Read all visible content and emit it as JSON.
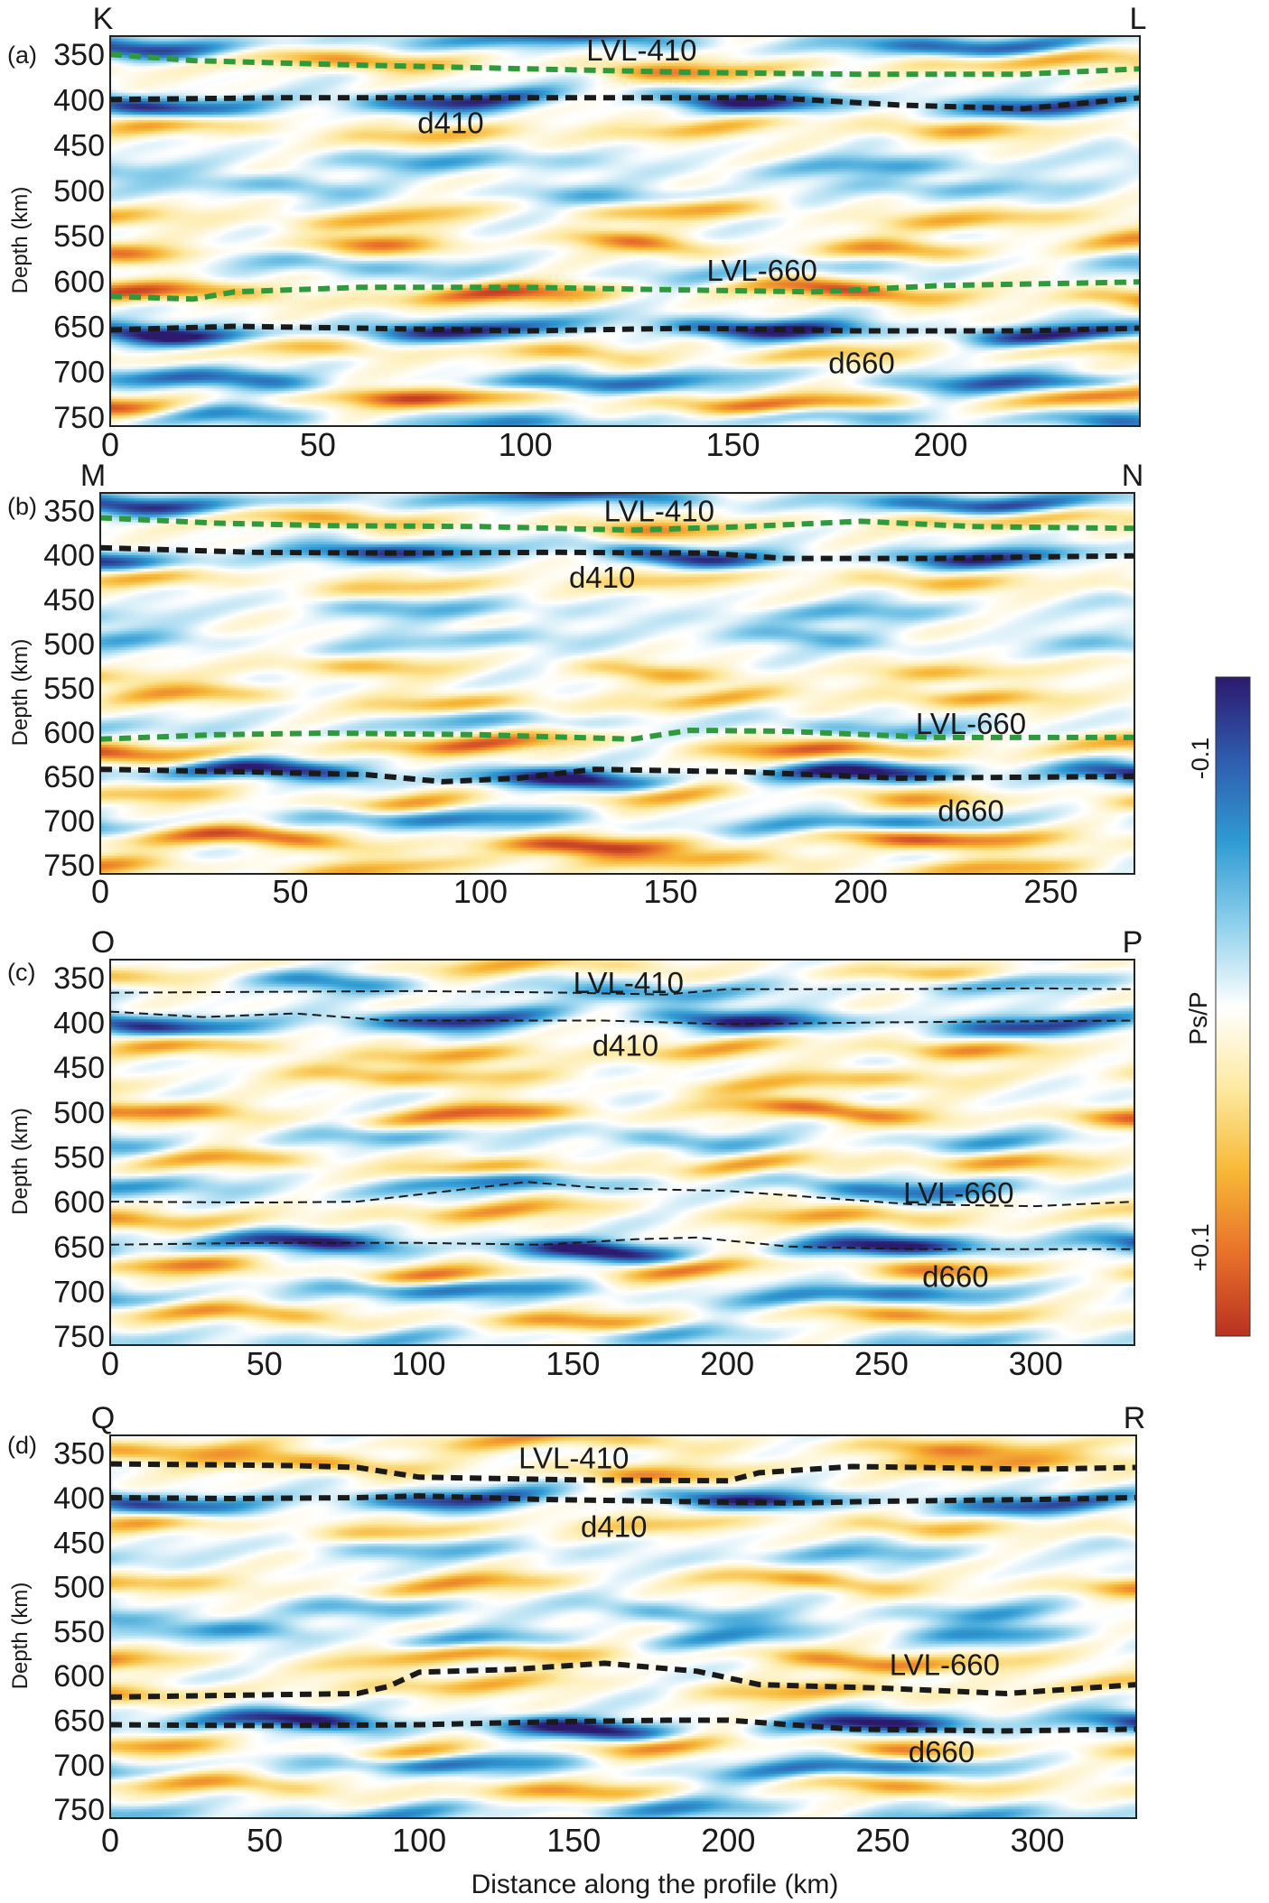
{
  "chart_data": {
    "type": "heatmap",
    "colorbar": {
      "label": "Ps/P",
      "ticks": [
        "-0.1",
        "+0.1"
      ],
      "value_range": [
        -0.125,
        0.125
      ],
      "colors": [
        "#2c1a6e",
        "#2f5cae",
        "#2f9bd3",
        "#8ed0ec",
        "#ffffff",
        "#fde9a0",
        "#f7b836",
        "#e8702a",
        "#b83222"
      ]
    },
    "xlabel": "Distance along the profile (km)",
    "panels": [
      {
        "id": "a",
        "panel_label": "(a)",
        "left_label": "K",
        "right_label": "L",
        "ylabel": "Depth (km)",
        "ylim": [
          330,
          760
        ],
        "xlim": [
          0,
          248
        ],
        "yticks": [
          "350",
          "400",
          "450",
          "500",
          "550",
          "600",
          "650",
          "700",
          "750"
        ],
        "xticks": [
          "0",
          "50",
          "100",
          "150",
          "200"
        ],
        "line_style": "thick",
        "boundaries": [
          {
            "name": "LVL-410",
            "color": "#2e9a3c",
            "x": [
              0,
              20,
              60,
              100,
              140,
              180,
              220,
              248
            ],
            "depth": [
              350,
              357,
              362,
              366,
              370,
              372,
              372,
              366
            ]
          },
          {
            "name": "d410",
            "color": "#1a1a1a",
            "x": [
              0,
              40,
              80,
              120,
              160,
              190,
              220,
              248
            ],
            "depth": [
              400,
              398,
              398,
              398,
              398,
              406,
              410,
              398
            ]
          },
          {
            "name": "LVL-660",
            "color": "#2e9a3c",
            "x": [
              0,
              20,
              30,
              60,
              100,
              140,
              170,
              200,
              248
            ],
            "depth": [
              617,
              620,
              612,
              607,
              607,
              610,
              612,
              605,
              601
            ]
          },
          {
            "name": "d660",
            "color": "#1a1a1a",
            "x": [
              0,
              30,
              60,
              100,
              140,
              180,
              220,
              248
            ],
            "depth": [
              654,
              650,
              652,
              655,
              652,
              655,
              655,
              652
            ]
          }
        ],
        "annotations": [
          {
            "text": "LVL-410",
            "x": 128,
            "depth": 345
          },
          {
            "text": "d410",
            "x": 82,
            "depth": 425
          },
          {
            "text": "LVL-660",
            "x": 157,
            "depth": 588
          },
          {
            "text": "d660",
            "x": 181,
            "depth": 690
          }
        ],
        "bands": [
          {
            "depth": 335,
            "amp": 0.7,
            "phase": 0.4
          },
          {
            "depth": 360,
            "amp": -0.55,
            "phase": 1.2
          },
          {
            "depth": 400,
            "amp": 0.85,
            "phase": 0.2
          },
          {
            "depth": 432,
            "amp": -0.5,
            "phase": 2.1
          },
          {
            "depth": 470,
            "amp": 0.35,
            "phase": 0.9
          },
          {
            "depth": 500,
            "amp": 0.3,
            "phase": 1.7
          },
          {
            "depth": 525,
            "amp": -0.5,
            "phase": 2.8
          },
          {
            "depth": 560,
            "amp": -0.55,
            "phase": 0.5
          },
          {
            "depth": 585,
            "amp": 0.3,
            "phase": 1.4
          },
          {
            "depth": 612,
            "amp": -0.75,
            "phase": 2.4
          },
          {
            "depth": 652,
            "amp": 0.95,
            "phase": 0.1
          },
          {
            "depth": 678,
            "amp": -0.45,
            "phase": 1.1
          },
          {
            "depth": 710,
            "amp": 0.65,
            "phase": 2.2
          },
          {
            "depth": 730,
            "amp": -0.8,
            "phase": 0.7
          },
          {
            "depth": 752,
            "amp": 0.5,
            "phase": 1.9
          }
        ]
      },
      {
        "id": "b",
        "panel_label": "(b)",
        "left_label": "M",
        "right_label": "N",
        "ylabel": "Depth (km)",
        "ylim": [
          330,
          760
        ],
        "xlim": [
          0,
          272
        ],
        "yticks": [
          "350",
          "400",
          "450",
          "500",
          "550",
          "600",
          "650",
          "700",
          "750"
        ],
        "xticks": [
          "0",
          "50",
          "100",
          "150",
          "200",
          "250"
        ],
        "line_style": "thick",
        "boundaries": [
          {
            "name": "LVL-410",
            "color": "#2e9a3c",
            "x": [
              0,
              30,
              60,
              100,
              140,
              170,
              200,
              230,
              272
            ],
            "depth": [
              358,
              364,
              367,
              368,
              372,
              368,
              362,
              368,
              370
            ]
          },
          {
            "name": "d410",
            "color": "#1a1a1a",
            "x": [
              0,
              40,
              80,
              120,
              160,
              180,
              220,
              250,
              272
            ],
            "depth": [
              392,
              397,
              398,
              397,
              398,
              404,
              404,
              402,
              401
            ]
          },
          {
            "name": "LVL-660",
            "color": "#2e9a3c",
            "x": [
              0,
              30,
              60,
              100,
              140,
              155,
              180,
              220,
              272
            ],
            "depth": [
              608,
              603,
              601,
              603,
              608,
              598,
              599,
              606,
              606
            ]
          },
          {
            "name": "d660",
            "color": "#1a1a1a",
            "x": [
              0,
              40,
              70,
              90,
              110,
              130,
              170,
              210,
              272
            ],
            "depth": [
              642,
              645,
              648,
              656,
              652,
              642,
              645,
              652,
              650
            ]
          }
        ],
        "annotations": [
          {
            "text": "LVL-410",
            "x": 147,
            "depth": 350
          },
          {
            "text": "d410",
            "x": 132,
            "depth": 425
          },
          {
            "text": "LVL-660",
            "x": 229,
            "depth": 590
          },
          {
            "text": "d660",
            "x": 229,
            "depth": 688
          }
        ],
        "bands": [
          {
            "depth": 336,
            "amp": 0.75,
            "phase": 0.3
          },
          {
            "depth": 362,
            "amp": -0.5,
            "phase": 1.3
          },
          {
            "depth": 398,
            "amp": 0.8,
            "phase": 0.6
          },
          {
            "depth": 428,
            "amp": -0.45,
            "phase": 2.2
          },
          {
            "depth": 462,
            "amp": 0.3,
            "phase": 1.0
          },
          {
            "depth": 495,
            "amp": 0.3,
            "phase": 2.6
          },
          {
            "depth": 528,
            "amp": -0.4,
            "phase": 0.8
          },
          {
            "depth": 562,
            "amp": -0.5,
            "phase": 1.9
          },
          {
            "depth": 590,
            "amp": 0.3,
            "phase": 2.9
          },
          {
            "depth": 615,
            "amp": -0.7,
            "phase": 0.4
          },
          {
            "depth": 648,
            "amp": 0.95,
            "phase": 1.5
          },
          {
            "depth": 672,
            "amp": -0.45,
            "phase": 2.3
          },
          {
            "depth": 700,
            "amp": 0.55,
            "phase": 0.9
          },
          {
            "depth": 722,
            "amp": -0.8,
            "phase": 1.8
          },
          {
            "depth": 748,
            "amp": -0.5,
            "phase": 2.7
          }
        ]
      },
      {
        "id": "c",
        "panel_label": "(c)",
        "left_label": "O",
        "right_label": "P",
        "ylabel": "Depth (km)",
        "ylim": [
          330,
          760
        ],
        "xlim": [
          0,
          332
        ],
        "yticks": [
          "350",
          "400",
          "450",
          "500",
          "550",
          "600",
          "650",
          "700",
          "750"
        ],
        "xticks": [
          "0",
          "50",
          "100",
          "150",
          "200",
          "250",
          "300"
        ],
        "line_style": "thin",
        "boundaries": [
          {
            "name": "LVL-410",
            "color": "#1a1a1a",
            "x": [
              0,
              50,
              100,
              150,
              180,
              200,
              250,
              300,
              332
            ],
            "depth": [
              367,
              366,
              365,
              367,
              369,
              363,
              363,
              362,
              363
            ]
          },
          {
            "name": "d410",
            "color": "#1a1a1a",
            "x": [
              0,
              30,
              60,
              90,
              120,
              160,
              200,
              250,
              332
            ],
            "depth": [
              388,
              394,
              390,
              398,
              398,
              398,
              402,
              400,
              398
            ]
          },
          {
            "name": "LVL-660",
            "color": "#1a1a1a",
            "x": [
              0,
              50,
              80,
              110,
              135,
              160,
              200,
              260,
              300,
              332
            ],
            "depth": [
              600,
              601,
              600,
              588,
              578,
              585,
              588,
              603,
              605,
              600
            ]
          },
          {
            "name": "d660",
            "color": "#1a1a1a",
            "x": [
              0,
              50,
              100,
              140,
              170,
              190,
              220,
              260,
              332
            ],
            "depth": [
              648,
              646,
              646,
              648,
              642,
              640,
              650,
              653,
              653
            ]
          }
        ],
        "annotations": [
          {
            "text": "LVL-410",
            "x": 168,
            "depth": 355
          },
          {
            "text": "d410",
            "x": 167,
            "depth": 425
          },
          {
            "text": "LVL-660",
            "x": 275,
            "depth": 590
          },
          {
            "text": "d660",
            "x": 274,
            "depth": 683
          }
        ],
        "bands": [
          {
            "depth": 340,
            "amp": -0.4,
            "phase": 0.5
          },
          {
            "depth": 358,
            "amp": 0.45,
            "phase": 1.4
          },
          {
            "depth": 396,
            "amp": 0.85,
            "phase": 0.2
          },
          {
            "depth": 430,
            "amp": -0.55,
            "phase": 2.0
          },
          {
            "depth": 462,
            "amp": -0.45,
            "phase": 1.1
          },
          {
            "depth": 500,
            "amp": -0.7,
            "phase": 2.5
          },
          {
            "depth": 528,
            "amp": 0.35,
            "phase": 0.6
          },
          {
            "depth": 558,
            "amp": -0.55,
            "phase": 1.7
          },
          {
            "depth": 580,
            "amp": 0.55,
            "phase": 2.8
          },
          {
            "depth": 612,
            "amp": -0.5,
            "phase": 0.3
          },
          {
            "depth": 650,
            "amp": 0.95,
            "phase": 1.3
          },
          {
            "depth": 675,
            "amp": -0.6,
            "phase": 2.1
          },
          {
            "depth": 700,
            "amp": 0.6,
            "phase": 0.9
          },
          {
            "depth": 728,
            "amp": -0.55,
            "phase": 1.9
          },
          {
            "depth": 750,
            "amp": 0.35,
            "phase": 2.9
          }
        ]
      },
      {
        "id": "d",
        "panel_label": "(d)",
        "left_label": "Q",
        "right_label": "R",
        "ylabel": "Depth (km)",
        "ylim": [
          330,
          760
        ],
        "xlim": [
          0,
          332
        ],
        "yticks": [
          "350",
          "400",
          "450",
          "500",
          "550",
          "600",
          "650",
          "700",
          "750"
        ],
        "xticks": [
          "0",
          "50",
          "100",
          "150",
          "200",
          "250",
          "300"
        ],
        "line_style": "thick",
        "boundaries": [
          {
            "name": "LVL-410",
            "color": "#1a1a1a",
            "x": [
              0,
              30,
              60,
              80,
              100,
              150,
              200,
              210,
              240,
              300,
              332
            ],
            "depth": [
              362,
              363,
              364,
              366,
              377,
              380,
              381,
              372,
              365,
              368,
              366
            ]
          },
          {
            "name": "d410",
            "color": "#1a1a1a",
            "x": [
              0,
              40,
              80,
              100,
              140,
              180,
              220,
              250,
              300,
              332
            ],
            "depth": [
              400,
              401,
              400,
              398,
              402,
              404,
              406,
              404,
              402,
              400
            ]
          },
          {
            "name": "LVL-660",
            "color": "#1a1a1a",
            "x": [
              0,
              40,
              80,
              90,
              100,
              130,
              160,
              190,
              210,
              250,
              290,
              332
            ],
            "depth": [
              624,
              622,
              620,
              612,
              596,
              593,
              586,
              595,
              610,
              614,
              620,
              610
            ]
          },
          {
            "name": "d660",
            "color": "#1a1a1a",
            "x": [
              0,
              50,
              100,
              140,
              180,
              200,
              240,
              290,
              332
            ],
            "depth": [
              655,
              656,
              655,
              652,
              650,
              650,
              660,
              662,
              660
            ]
          }
        ],
        "annotations": [
          {
            "text": "LVL-410",
            "x": 150,
            "depth": 355
          },
          {
            "text": "d410",
            "x": 163,
            "depth": 432
          },
          {
            "text": "LVL-660",
            "x": 270,
            "depth": 587
          },
          {
            "text": "d660",
            "x": 269,
            "depth": 685
          }
        ],
        "bands": [
          {
            "depth": 338,
            "amp": -0.5,
            "phase": 0.4
          },
          {
            "depth": 365,
            "amp": -0.5,
            "phase": 1.4
          },
          {
            "depth": 400,
            "amp": 0.8,
            "phase": 0.2
          },
          {
            "depth": 430,
            "amp": -0.45,
            "phase": 2.3
          },
          {
            "depth": 460,
            "amp": 0.3,
            "phase": 1.0
          },
          {
            "depth": 495,
            "amp": -0.5,
            "phase": 2.6
          },
          {
            "depth": 525,
            "amp": 0.35,
            "phase": 0.7
          },
          {
            "depth": 555,
            "amp": 0.45,
            "phase": 1.8
          },
          {
            "depth": 578,
            "amp": -0.6,
            "phase": 2.9
          },
          {
            "depth": 612,
            "amp": -0.45,
            "phase": 0.5
          },
          {
            "depth": 655,
            "amp": 0.95,
            "phase": 1.4
          },
          {
            "depth": 680,
            "amp": -0.55,
            "phase": 2.4
          },
          {
            "depth": 700,
            "amp": 0.65,
            "phase": 1.0
          },
          {
            "depth": 725,
            "amp": -0.5,
            "phase": 2.0
          },
          {
            "depth": 752,
            "amp": 0.45,
            "phase": 2.8
          }
        ]
      }
    ]
  }
}
